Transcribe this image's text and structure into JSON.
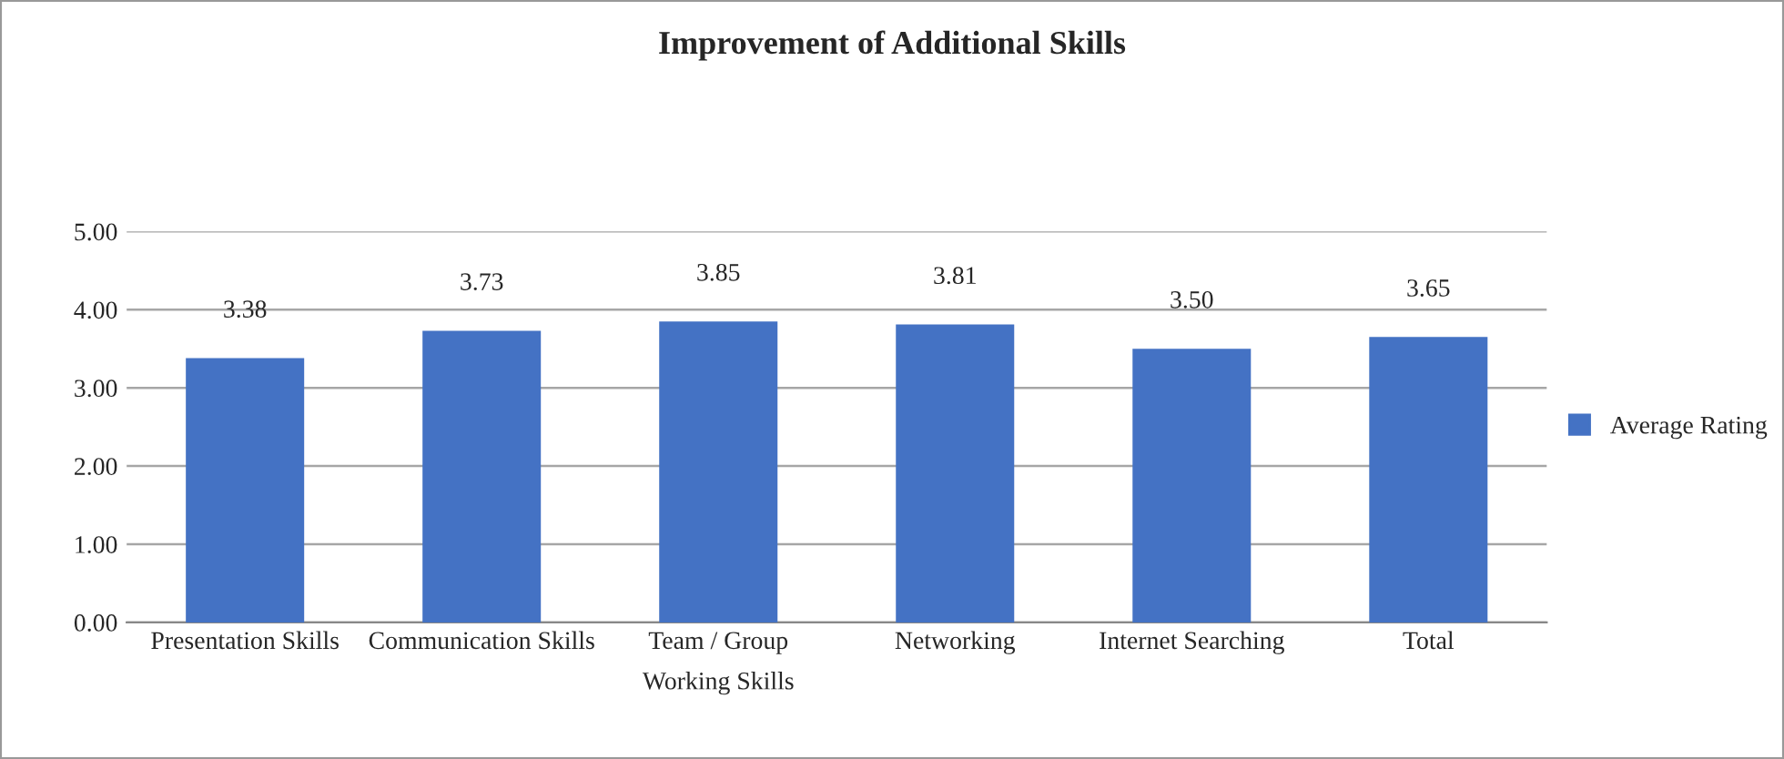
{
  "chart_data": {
    "type": "bar",
    "title": "Improvement of Additional Skills",
    "categories": [
      "Presentation Skills",
      "Communication Skills",
      "Team / Group\nWorking Skills",
      "Networking",
      "Internet Searching",
      "Total"
    ],
    "series": [
      {
        "name": "Average Rating",
        "color": "#4472c4",
        "values": [
          3.38,
          3.73,
          3.85,
          3.81,
          3.5,
          3.65
        ],
        "value_labels": [
          "3.38",
          "3.73",
          "3.85",
          "3.81",
          "3.50",
          "3.65"
        ]
      }
    ],
    "ylim": [
      0,
      5
    ],
    "yticks": [
      {
        "value": 0,
        "label": "0.00"
      },
      {
        "value": 1,
        "label": "1.00"
      },
      {
        "value": 2,
        "label": "2.00"
      },
      {
        "value": 3,
        "label": "3.00"
      },
      {
        "value": 4,
        "label": "4.00"
      },
      {
        "value": 5,
        "label": "5.00"
      }
    ],
    "grid": "y",
    "legend": "right"
  }
}
